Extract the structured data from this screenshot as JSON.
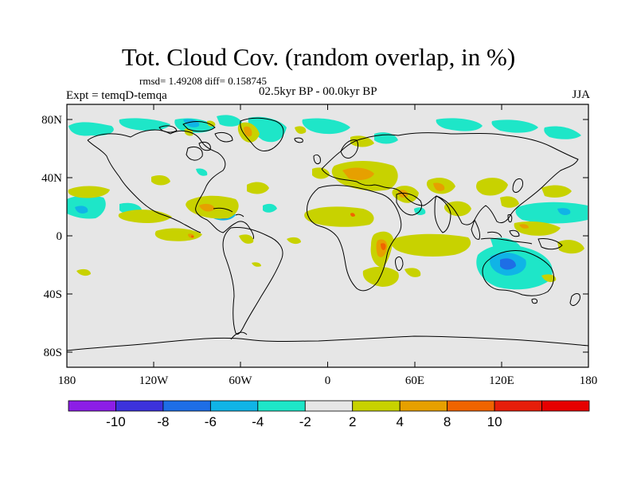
{
  "title": "Tot. Cloud Cov. (random overlap, in %)",
  "stats": "rmsd= 1.49208 diff= 0.158745",
  "experiment": "Expt = temqD-temqa",
  "period": "02.5kyr BP - 00.0kyr BP",
  "season": "JJA",
  "axes": {
    "lon_ticks": [
      "180",
      "120W",
      "60W",
      "0",
      "60E",
      "120E",
      "180"
    ],
    "lat_ticks": [
      "80N",
      "40N",
      "0",
      "40S",
      "80S"
    ]
  },
  "colorbar": {
    "labels": [
      "-10",
      "-8",
      "-6",
      "-4",
      "-2",
      "2",
      "4",
      "8",
      "10"
    ],
    "colors": [
      "#8c1ee6",
      "#3c32dc",
      "#1e6ee6",
      "#10b4e6",
      "#1ee6c8",
      "#e6e6e6",
      "#c8d200",
      "#e6a000",
      "#f06400",
      "#e61e0a",
      "#e60000"
    ]
  },
  "colors": {
    "background": "#e6e6e6",
    "negative_light": "#1ee6c8",
    "negative_mid": "#10b4e6",
    "negative_strong": "#1e6ee6",
    "negative_max": "#3c32dc",
    "positive_light": "#c8d200",
    "positive_mid": "#e6a000",
    "positive_strong": "#f06400",
    "coastline": "#000000"
  }
}
